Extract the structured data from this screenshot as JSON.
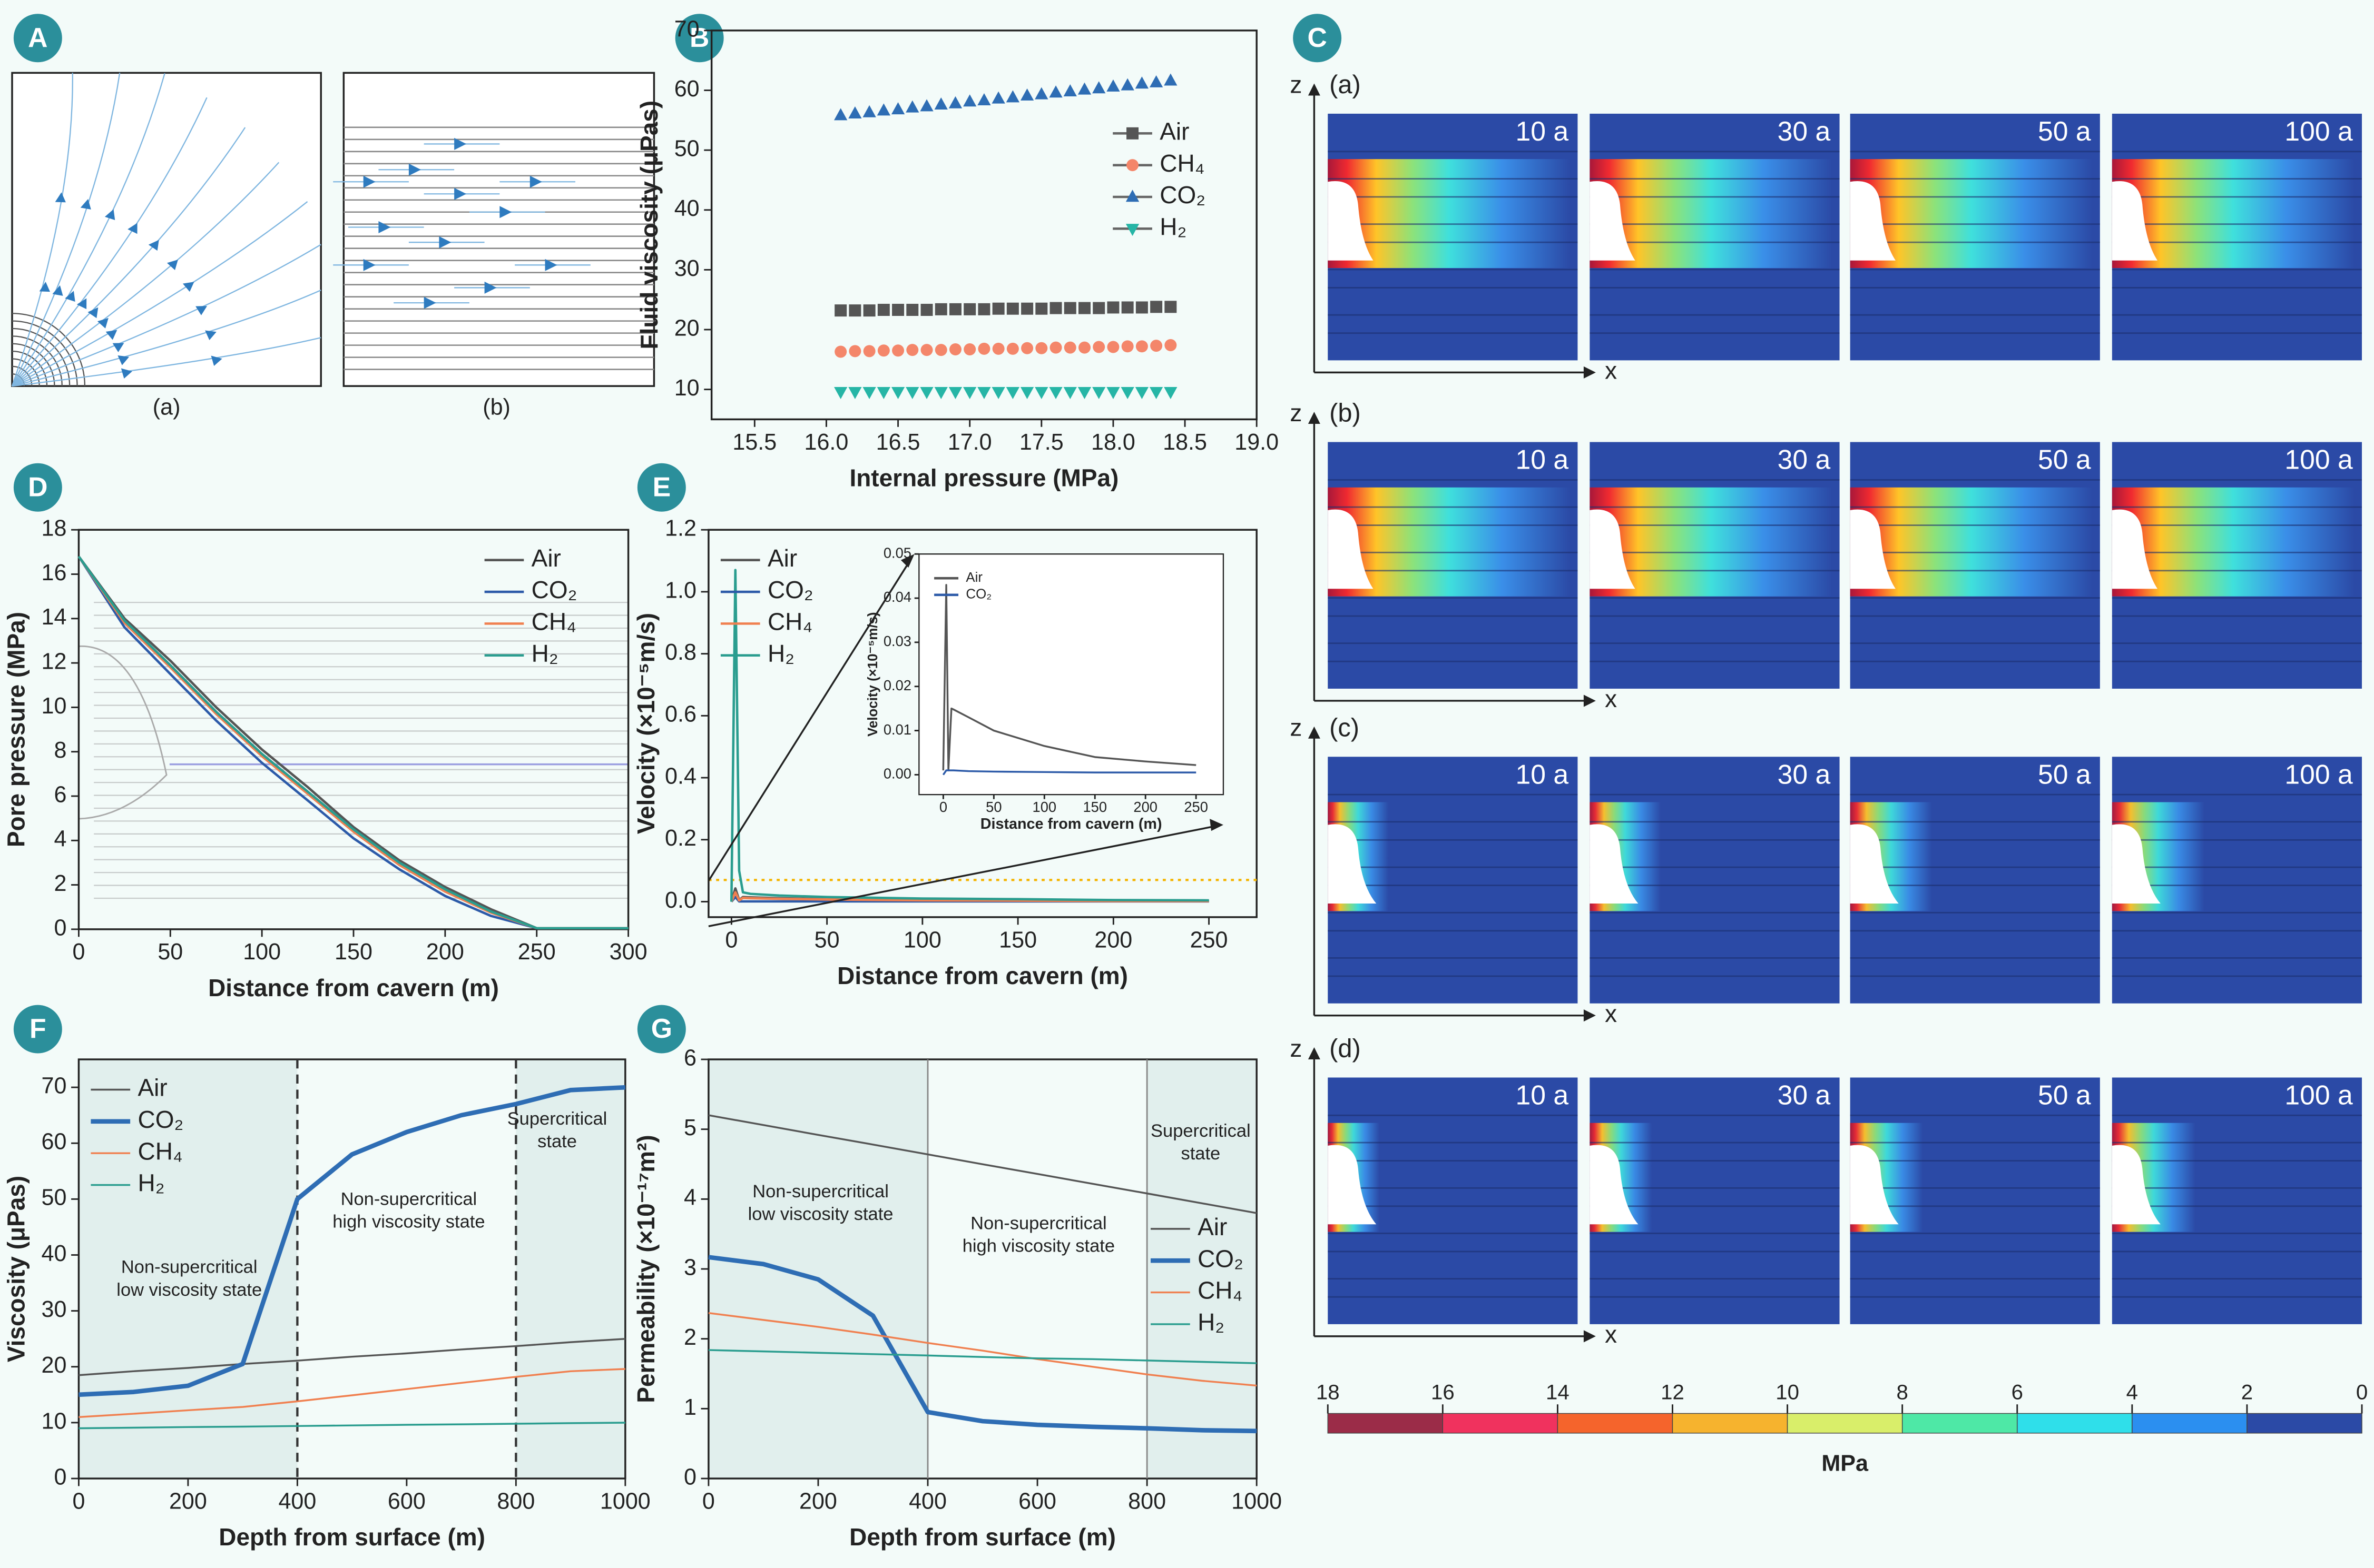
{
  "panels": [
    "A",
    "B",
    "C",
    "D",
    "E",
    "F",
    "G"
  ],
  "panel_a": {
    "labels": [
      "(a)",
      "(b)"
    ]
  },
  "panel_c": {
    "rows": [
      "(a)",
      "(b)",
      "(c)",
      "(d)"
    ],
    "times": [
      "10 a",
      "30 a",
      "50 a",
      "100 a"
    ],
    "axes": [
      "z",
      "x"
    ]
  },
  "colorbar": {
    "ticks": [
      18,
      16,
      14,
      12,
      10,
      8,
      6,
      4,
      2,
      0
    ],
    "colors": [
      "#9b2c48",
      "#f0325e",
      "#f5642c",
      "#f6b32e",
      "#d9ee6a",
      "#4ee8a6",
      "#2fdfea",
      "#2b8ff0",
      "#2b4aa6"
    ],
    "label": "MPa"
  },
  "chart_data": [
    {
      "type": "scatter",
      "xlabel": "Internal pressure (MPa)",
      "ylabel": "Fluid viscosity (μPas)",
      "x": [
        16.1,
        16.2,
        16.3,
        16.4,
        16.5,
        16.6,
        16.7,
        16.8,
        16.9,
        17.0,
        17.1,
        17.2,
        17.3,
        17.4,
        17.5,
        17.6,
        17.7,
        17.8,
        17.9,
        18.0,
        18.1,
        18.2,
        18.3,
        18.4
      ],
      "series": [
        {
          "name": "Air",
          "color": "#555555",
          "marker": "square",
          "values": [
            23.2,
            23.2,
            23.2,
            23.3,
            23.3,
            23.3,
            23.3,
            23.4,
            23.4,
            23.4,
            23.4,
            23.5,
            23.5,
            23.5,
            23.5,
            23.6,
            23.6,
            23.6,
            23.6,
            23.7,
            23.7,
            23.7,
            23.8,
            23.8
          ]
        },
        {
          "name": "CH₄",
          "color": "#f4866a",
          "marker": "circle",
          "values": [
            16.3,
            16.4,
            16.4,
            16.5,
            16.5,
            16.6,
            16.6,
            16.6,
            16.7,
            16.7,
            16.8,
            16.8,
            16.8,
            16.9,
            16.9,
            17.0,
            17.0,
            17.0,
            17.1,
            17.1,
            17.2,
            17.2,
            17.3,
            17.4
          ]
        },
        {
          "name": "CO₂",
          "color": "#2e6db4",
          "marker": "triangle-up",
          "values": [
            55.8,
            56.1,
            56.3,
            56.6,
            56.8,
            57.1,
            57.3,
            57.6,
            57.8,
            58.1,
            58.3,
            58.6,
            58.8,
            59.1,
            59.3,
            59.6,
            59.8,
            60.1,
            60.3,
            60.6,
            60.8,
            61.1,
            61.3,
            61.6
          ]
        },
        {
          "name": "H₂",
          "color": "#26b5a6",
          "marker": "triangle-down",
          "values": [
            9.6,
            9.6,
            9.6,
            9.6,
            9.6,
            9.6,
            9.6,
            9.6,
            9.6,
            9.6,
            9.6,
            9.6,
            9.6,
            9.6,
            9.6,
            9.6,
            9.6,
            9.6,
            9.6,
            9.6,
            9.6,
            9.6,
            9.6,
            9.6
          ]
        }
      ],
      "xlim": [
        15.2,
        19.0
      ],
      "xticks": [
        15.5,
        {
          "value": 16,
          "label": "16.0"
        },
        16.5,
        {
          "value": 17,
          "label": "17.0"
        },
        17.5,
        {
          "value": 18,
          "label": "18.0"
        },
        18.5,
        {
          "value": 19,
          "label": "19.0"
        }
      ],
      "ylim": [
        5,
        70
      ],
      "yticks": [
        10,
        20,
        30,
        40,
        50,
        60,
        70
      ],
      "legend": "right"
    },
    {
      "type": "line",
      "xlabel": "Distance from cavern (m)",
      "ylabel": "Pore pressure (MPa)",
      "x": [
        0,
        25,
        50,
        75,
        100,
        125,
        150,
        175,
        200,
        225,
        250,
        275,
        300
      ],
      "series": [
        {
          "name": "Air",
          "color": "#555555",
          "values": [
            16.8,
            14.0,
            12.1,
            10.0,
            8.1,
            6.4,
            4.6,
            3.1,
            1.9,
            0.9,
            0.05,
            0.05,
            0.05
          ]
        },
        {
          "name": "CO₂",
          "color": "#2c5aa8",
          "values": [
            16.8,
            13.6,
            11.5,
            9.4,
            7.5,
            5.8,
            4.1,
            2.7,
            1.5,
            0.6,
            0.05,
            0.05,
            0.05
          ]
        },
        {
          "name": "CH₄",
          "color": "#f08050",
          "values": [
            16.8,
            13.8,
            11.8,
            9.7,
            7.8,
            6.1,
            4.4,
            2.9,
            1.7,
            0.75,
            0.05,
            0.05,
            0.05
          ]
        },
        {
          "name": "H₂",
          "color": "#2a9d8f",
          "values": [
            16.8,
            13.9,
            11.9,
            9.8,
            7.9,
            6.2,
            4.5,
            3.0,
            1.8,
            0.8,
            0.05,
            0.05,
            0.05
          ]
        }
      ],
      "xlim": [
        0,
        300
      ],
      "xticks": [
        0,
        50,
        100,
        150,
        200,
        250,
        300
      ],
      "ylim": [
        0,
        18
      ],
      "yticks": [
        0,
        2,
        4,
        6,
        8,
        10,
        12,
        14,
        16,
        18
      ],
      "legend": "top-right"
    },
    {
      "type": "line",
      "xlabel": "Distance from cavern (m)",
      "ylabel": "Velocity (×10⁻⁵m/s)",
      "x": [
        0,
        2,
        4,
        6,
        10,
        25,
        50,
        100,
        150,
        200,
        250
      ],
      "series": [
        {
          "name": "Air",
          "color": "#555555",
          "values": [
            0,
            0.043,
            0.005,
            0.015,
            0.014,
            0.011,
            0.008,
            0.005,
            0.004,
            0.003,
            0.002
          ]
        },
        {
          "name": "CO₂",
          "color": "#2c5aa8",
          "values": [
            0,
            0.015,
            0.001,
            0.001,
            0.001,
            0.001,
            0.001,
            0.001,
            0.001,
            0.001,
            0.001
          ]
        },
        {
          "name": "CH₄",
          "color": "#f08050",
          "values": [
            0,
            0.03,
            0.004,
            0.012,
            0.011,
            0.009,
            0.007,
            0.004,
            0.003,
            0.002,
            0.002
          ]
        },
        {
          "name": "H₂",
          "color": "#2a9d8f",
          "values": [
            0,
            1.07,
            0.1,
            0.03,
            0.025,
            0.02,
            0.015,
            0.01,
            0.008,
            0.005,
            0.004
          ]
        }
      ],
      "hlines": [
        0.07
      ],
      "xlim": [
        -12,
        275
      ],
      "xticks": [
        0,
        50,
        100,
        150,
        200,
        250
      ],
      "ylim": [
        -0.05,
        1.2
      ],
      "yticks": [
        {
          "value": 0,
          "label": "0.0"
        },
        0.2,
        0.4,
        0.6,
        0.8,
        {
          "value": 1,
          "label": "1.0"
        },
        1.2
      ],
      "legend": "top-left"
    },
    {
      "type": "line",
      "xlabel": "Distance from cavern (m)",
      "ylabel": "Velocity (×10⁻⁵m/s)",
      "x": [
        0,
        3,
        5,
        8,
        10,
        25,
        50,
        100,
        150,
        200,
        250
      ],
      "series": [
        {
          "name": "Air",
          "color": "#555555",
          "values": [
            0.001,
            0.043,
            0.001,
            0.015,
            0.0148,
            0.013,
            0.01,
            0.0065,
            0.004,
            0.003,
            0.0022
          ]
        },
        {
          "name": "CO₂",
          "color": "#2c5aa8",
          "values": [
            0,
            0.001,
            0.001,
            0.001,
            0.001,
            0.0008,
            0.0007,
            0.0006,
            0.0005,
            0.0005,
            0.0005
          ]
        }
      ],
      "xlim": [
        -24,
        277
      ],
      "xticks": [
        0,
        50,
        100,
        150,
        200,
        250
      ],
      "ylim": [
        -0.0045,
        0.05
      ],
      "yticks": [
        {
          "value": 0,
          "label": "0.00"
        },
        {
          "value": 0.01,
          "label": "0.01"
        },
        {
          "value": 0.02,
          "label": "0.02"
        },
        {
          "value": 0.03,
          "label": "0.03"
        },
        {
          "value": 0.04,
          "label": "0.04"
        },
        {
          "value": 0.05,
          "label": "0.05"
        }
      ],
      "legend": "top-left"
    },
    {
      "type": "line",
      "xlabel": "Depth from surface (m)",
      "ylabel": "Viscosity (μPas)",
      "x": [
        0,
        100,
        200,
        300,
        400,
        500,
        600,
        700,
        800,
        900,
        1000
      ],
      "series": [
        {
          "name": "Air",
          "color": "#555555",
          "linewidth": 1.2,
          "values": [
            18.5,
            19.2,
            19.8,
            20.5,
            21.1,
            21.8,
            22.4,
            23.1,
            23.7,
            24.4,
            25
          ]
        },
        {
          "name": "CO₂",
          "color": "#2e6db4",
          "linewidth": 3,
          "values": [
            15,
            15.5,
            16.6,
            20.5,
            50,
            58,
            62,
            65,
            67,
            69.5,
            70
          ]
        },
        {
          "name": "CH₄",
          "color": "#f08050",
          "linewidth": 1.2,
          "values": [
            11,
            11.6,
            12.2,
            12.8,
            13.8,
            14.9,
            16,
            17.1,
            18.2,
            19.2,
            19.6
          ]
        },
        {
          "name": "H₂",
          "color": "#2a9d8f",
          "linewidth": 1.2,
          "values": [
            9,
            9.1,
            9.2,
            9.3,
            9.4,
            9.5,
            9.6,
            9.7,
            9.8,
            9.9,
            10
          ]
        }
      ],
      "regions": [
        [
          0,
          400
        ],
        [
          800,
          1000
        ]
      ],
      "vlines": [
        400,
        800
      ],
      "vline_style": "dashed",
      "annotations": [
        [
          "Non-supercritical",
          "low viscosity state"
        ],
        [
          "Non-supercritical",
          "high viscosity state"
        ],
        [
          "Supercritical",
          "state"
        ]
      ],
      "xlim": [
        0,
        1000
      ],
      "xticks": [
        0,
        200,
        400,
        600,
        800,
        1000
      ],
      "ylim": [
        0,
        75
      ],
      "yticks": [
        0,
        10,
        20,
        30,
        40,
        50,
        60,
        70
      ],
      "legend": "top-left"
    },
    {
      "type": "line",
      "xlabel": "Depth from surface (m)",
      "ylabel": "Permeability (×10⁻¹⁷m²)",
      "x": [
        0,
        100,
        200,
        300,
        400,
        500,
        600,
        700,
        800,
        900,
        1000
      ],
      "series": [
        {
          "name": "Air",
          "color": "#555555",
          "linewidth": 1.2,
          "values": [
            5.2,
            5.06,
            4.92,
            4.78,
            4.64,
            4.5,
            4.36,
            4.22,
            4.08,
            3.94,
            3.8
          ]
        },
        {
          "name": "CO₂",
          "color": "#2e6db4",
          "linewidth": 3,
          "values": [
            3.17,
            3.07,
            2.85,
            2.33,
            0.95,
            0.82,
            0.77,
            0.74,
            0.72,
            0.69,
            0.68
          ]
        },
        {
          "name": "CH₄",
          "color": "#f08050",
          "linewidth": 1.2,
          "values": [
            2.37,
            2.27,
            2.17,
            2.06,
            1.94,
            1.83,
            1.71,
            1.6,
            1.49,
            1.4,
            1.33
          ]
        },
        {
          "name": "H₂",
          "color": "#2a9d8f",
          "linewidth": 1.2,
          "values": [
            1.84,
            1.82,
            1.8,
            1.78,
            1.76,
            1.74,
            1.72,
            1.71,
            1.69,
            1.67,
            1.65
          ]
        }
      ],
      "regions": [
        [
          0,
          400
        ],
        [
          800,
          1000
        ]
      ],
      "vlines": [
        400,
        800
      ],
      "vline_style": "solid",
      "annotations": [
        [
          "Non-supercritical",
          "low viscosity state"
        ],
        [
          "Non-supercritical",
          "high viscosity state"
        ],
        [
          "Supercritical",
          "state"
        ]
      ],
      "xlim": [
        0,
        1000
      ],
      "xticks": [
        0,
        200,
        400,
        600,
        800,
        1000
      ],
      "ylim": [
        0,
        6
      ],
      "yticks": [
        0,
        1,
        2,
        3,
        4,
        5,
        6
      ],
      "legend": "bottom-right"
    }
  ]
}
